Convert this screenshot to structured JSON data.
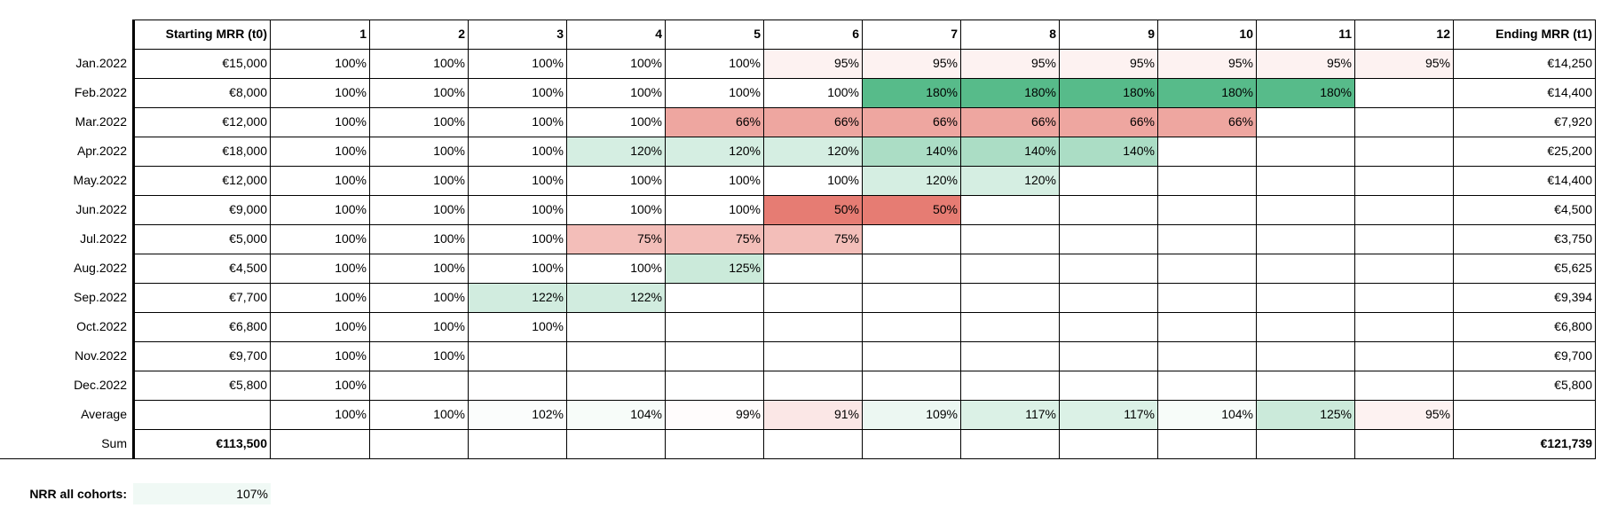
{
  "table": {
    "header": [
      "Starting MRR (t0)",
      "1",
      "2",
      "3",
      "4",
      "5",
      "6",
      "7",
      "8",
      "9",
      "10",
      "11",
      "12",
      "Ending MRR (t1)"
    ],
    "rows": [
      {
        "label": "Jan.2022",
        "start": "€15,000",
        "months": [
          "100%",
          "100%",
          "100%",
          "100%",
          "100%",
          "95%",
          "95%",
          "95%",
          "95%",
          "95%",
          "95%",
          "95%"
        ],
        "end": "€14,250"
      },
      {
        "label": "Feb.2022",
        "start": "€8,000",
        "months": [
          "100%",
          "100%",
          "100%",
          "100%",
          "100%",
          "100%",
          "180%",
          "180%",
          "180%",
          "180%",
          "180%"
        ],
        "end": "€14,400"
      },
      {
        "label": "Mar.2022",
        "start": "€12,000",
        "months": [
          "100%",
          "100%",
          "100%",
          "100%",
          "66%",
          "66%",
          "66%",
          "66%",
          "66%",
          "66%"
        ],
        "end": "€7,920"
      },
      {
        "label": "Apr.2022",
        "start": "€18,000",
        "months": [
          "100%",
          "100%",
          "100%",
          "120%",
          "120%",
          "120%",
          "140%",
          "140%",
          "140%"
        ],
        "end": "€25,200"
      },
      {
        "label": "May.2022",
        "start": "€12,000",
        "months": [
          "100%",
          "100%",
          "100%",
          "100%",
          "100%",
          "100%",
          "120%",
          "120%"
        ],
        "end": "€14,400"
      },
      {
        "label": "Jun.2022",
        "start": "€9,000",
        "months": [
          "100%",
          "100%",
          "100%",
          "100%",
          "100%",
          "50%",
          "50%"
        ],
        "end": "€4,500"
      },
      {
        "label": "Jul.2022",
        "start": "€5,000",
        "months": [
          "100%",
          "100%",
          "100%",
          "75%",
          "75%",
          "75%"
        ],
        "end": "€3,750"
      },
      {
        "label": "Aug.2022",
        "start": "€4,500",
        "months": [
          "100%",
          "100%",
          "100%",
          "100%",
          "125%"
        ],
        "end": "€5,625"
      },
      {
        "label": "Sep.2022",
        "start": "€7,700",
        "months": [
          "100%",
          "100%",
          "122%",
          "122%"
        ],
        "end": "€9,394"
      },
      {
        "label": "Oct.2022",
        "start": "€6,800",
        "months": [
          "100%",
          "100%",
          "100%"
        ],
        "end": "€6,800"
      },
      {
        "label": "Nov.2022",
        "start": "€9,700",
        "months": [
          "100%",
          "100%"
        ],
        "end": "€9,700"
      },
      {
        "label": "Dec.2022",
        "start": "€5,800",
        "months": [
          "100%"
        ],
        "end": "€5,800"
      },
      {
        "label": "Average",
        "months": [
          "100%",
          "100%",
          "102%",
          "104%",
          "99%",
          "91%",
          "109%",
          "117%",
          "117%",
          "104%",
          "125%",
          "95%"
        ]
      },
      {
        "label": "Sum",
        "start": "€113,500",
        "end": "€121,739"
      }
    ],
    "nrr": {
      "label": "NRR all cohorts:",
      "value": "107%"
    }
  }
}
